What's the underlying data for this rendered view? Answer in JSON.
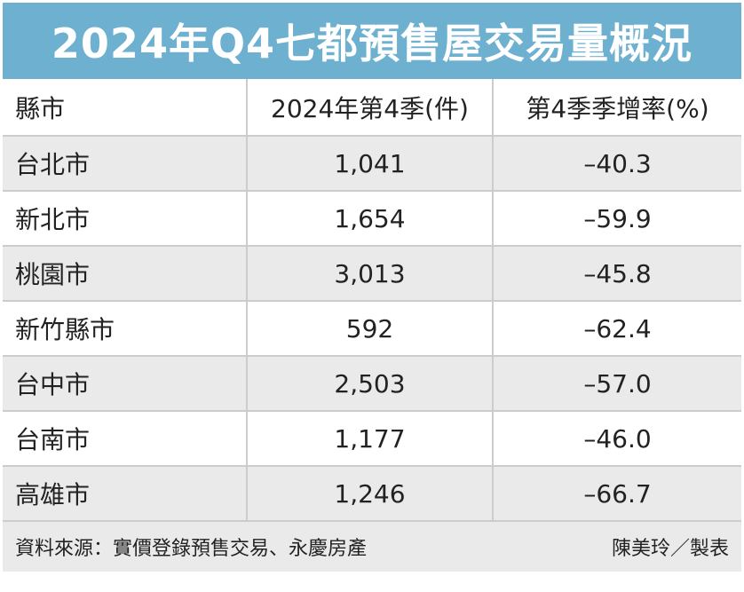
{
  "title": "2024年Q4七都預售屋交易量概況",
  "table": {
    "headers": [
      "縣市",
      "2024年第4季(件)",
      "第4季季增率(%)"
    ],
    "rows": [
      {
        "city": "台北市",
        "units": "1,041",
        "rate": "–40.3"
      },
      {
        "city": "新北市",
        "units": "1,654",
        "rate": "–59.9"
      },
      {
        "city": "桃園市",
        "units": "3,013",
        "rate": "–45.8"
      },
      {
        "city": "新竹縣市",
        "units": "592",
        "rate": "–62.4"
      },
      {
        "city": "台中市",
        "units": "2,503",
        "rate": "–57.0"
      },
      {
        "city": "台南市",
        "units": "1,177",
        "rate": "–46.0"
      },
      {
        "city": "高雄市",
        "units": "1,246",
        "rate": "–66.7"
      }
    ]
  },
  "footer": {
    "source": "資料來源：實價登錄預售交易、永慶房產",
    "credit": "陳美玲／製表"
  },
  "colors": {
    "title_background": "#6eb0cf",
    "title_text": "#ffffff",
    "row_stripe": "#eaeaea",
    "grid_line": "#c9cdd0"
  }
}
